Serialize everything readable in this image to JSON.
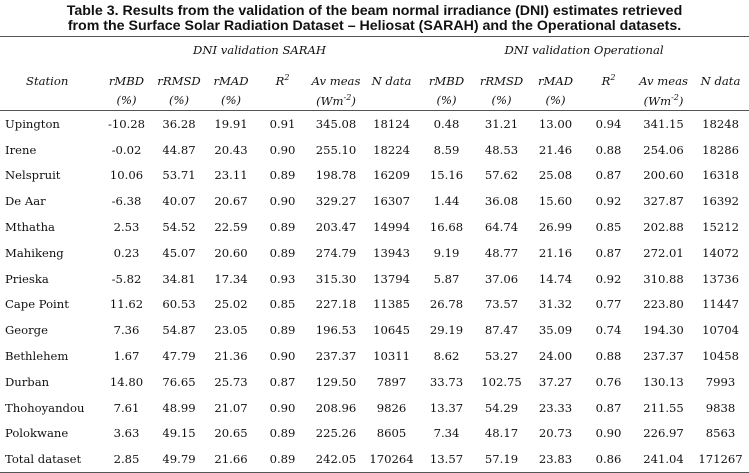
{
  "title": {
    "line1": "Table 3. Results from the validation of the beam normal irradiance (DNI) estimates retrieved",
    "line2": "from the Surface Solar Radiation Dataset – Heliosat (SARAH) and the Operational datasets."
  },
  "groups": {
    "sarah": "DNI validation SARAH",
    "operational": "DNI validation Operational"
  },
  "columns": {
    "station": "Station",
    "rmbd": "rMBD",
    "rrmsd": "rRMSD",
    "rmad": "rMAD",
    "r2": "R",
    "r2_sup": "2",
    "avmeas": "Av meas",
    "ndata": "N data",
    "pct": "(%)",
    "unit_pre": "(Wm",
    "unit_sup": "-2",
    "unit_post": ")"
  },
  "rows": [
    [
      "Upington",
      "-10.28",
      "36.28",
      "19.91",
      "0.91",
      "345.08",
      "18124",
      "0.48",
      "31.21",
      "13.00",
      "0.94",
      "341.15",
      "18248"
    ],
    [
      "Irene",
      "-0.02",
      "44.87",
      "20.43",
      "0.90",
      "255.10",
      "18224",
      "8.59",
      "48.53",
      "21.46",
      "0.88",
      "254.06",
      "18286"
    ],
    [
      "Nelspruit",
      "10.06",
      "53.71",
      "23.11",
      "0.89",
      "198.78",
      "16209",
      "15.16",
      "57.62",
      "25.08",
      "0.87",
      "200.60",
      "16318"
    ],
    [
      "De Aar",
      "-6.38",
      "40.07",
      "20.67",
      "0.90",
      "329.27",
      "16307",
      "1.44",
      "36.08",
      "15.60",
      "0.92",
      "327.87",
      "16392"
    ],
    [
      "Mthatha",
      "2.53",
      "54.52",
      "22.59",
      "0.89",
      "203.47",
      "14994",
      "16.68",
      "64.74",
      "26.99",
      "0.85",
      "202.88",
      "15212"
    ],
    [
      "Mahikeng",
      "0.23",
      "45.07",
      "20.60",
      "0.89",
      "274.79",
      "13943",
      "9.19",
      "48.77",
      "21.16",
      "0.87",
      "272.01",
      "14072"
    ],
    [
      "Prieska",
      "-5.82",
      "34.81",
      "17.34",
      "0.93",
      "315.30",
      "13794",
      "5.87",
      "37.06",
      "14.74",
      "0.92",
      "310.88",
      "13736"
    ],
    [
      "Cape Point",
      "11.62",
      "60.53",
      "25.02",
      "0.85",
      "227.18",
      "11385",
      "26.78",
      "73.57",
      "31.32",
      "0.77",
      "223.80",
      "11447"
    ],
    [
      "George",
      "7.36",
      "54.87",
      "23.05",
      "0.89",
      "196.53",
      "10645",
      "29.19",
      "87.47",
      "35.09",
      "0.74",
      "194.30",
      "10704"
    ],
    [
      "Bethlehem",
      "1.67",
      "47.79",
      "21.36",
      "0.90",
      "237.37",
      "10311",
      "8.62",
      "53.27",
      "24.00",
      "0.88",
      "237.37",
      "10458"
    ],
    [
      "Durban",
      "14.80",
      "76.65",
      "25.73",
      "0.87",
      "129.50",
      "7897",
      "33.73",
      "102.75",
      "37.27",
      "0.76",
      "130.13",
      "7993"
    ],
    [
      "Thohoyandou",
      "7.61",
      "48.99",
      "21.07",
      "0.90",
      "208.96",
      "9826",
      "13.37",
      "54.29",
      "23.33",
      "0.87",
      "211.55",
      "9838"
    ],
    [
      "Polokwane",
      "3.63",
      "49.15",
      "20.65",
      "0.89",
      "225.26",
      "8605",
      "7.34",
      "48.17",
      "20.73",
      "0.90",
      "226.97",
      "8563"
    ],
    [
      "Total dataset",
      "2.85",
      "49.79",
      "21.66",
      "0.89",
      "242.05",
      "170264",
      "13.57",
      "57.19",
      "23.83",
      "0.86",
      "241.04",
      "171267"
    ]
  ]
}
